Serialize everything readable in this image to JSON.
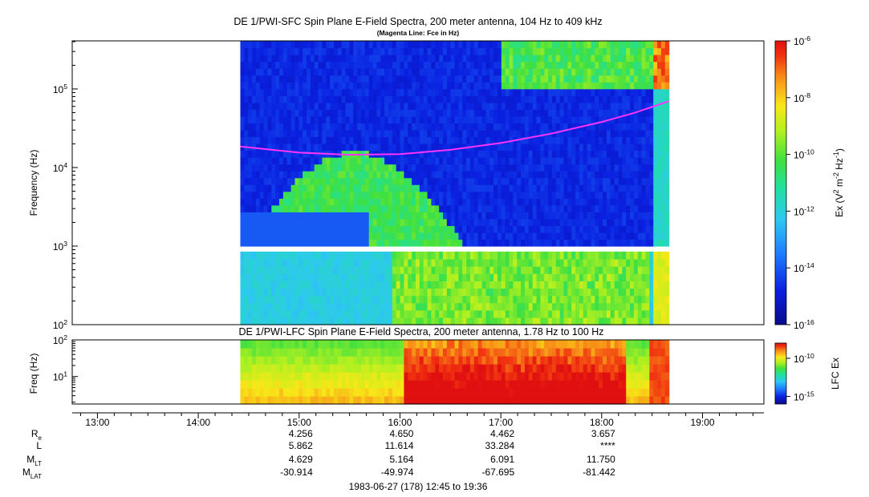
{
  "chart_data": [
    {
      "panel": "SFC",
      "type": "heatmap",
      "title": "DE 1/PWI-SFC  Spin Plane E-Field Spectra, 200 meter antenna, 104 Hz to 409 kHz",
      "subtitle": "(Magenta Line: Fce in Hz)",
      "ylabel": "Frequency (Hz)",
      "yscale": "log",
      "ylim": [
        100,
        409000
      ],
      "ytick_labels": [
        {
          "base": "10",
          "exp": "2",
          "value": 100
        },
        {
          "base": "10",
          "exp": "3",
          "value": 1000
        },
        {
          "base": "10",
          "exp": "4",
          "value": 10000
        },
        {
          "base": "10",
          "exp": "5",
          "value": 100000
        }
      ],
      "x_data_range": [
        "14:25",
        "18:40"
      ],
      "band_gap_hz": 1000,
      "fce_line": {
        "color": "#ff33ff",
        "points": [
          [
            "14:25",
            18500
          ],
          [
            "15:00",
            15500
          ],
          [
            "15:30",
            14500
          ],
          [
            "16:00",
            14800
          ],
          [
            "16:30",
            16800
          ],
          [
            "17:00",
            20500
          ],
          [
            "17:30",
            27000
          ],
          [
            "18:00",
            38000
          ],
          [
            "18:20",
            50000
          ],
          [
            "18:40",
            70000
          ]
        ]
      },
      "colorbar": {
        "label_parts": [
          "Ex (V",
          "2",
          " m",
          "-2",
          " Hz",
          "-1",
          ")"
        ],
        "scale": "log",
        "range": [
          1e-16,
          1e-06
        ],
        "tick_labels": [
          {
            "base": "10",
            "exp": "-6",
            "value": 1e-06
          },
          {
            "base": "10",
            "exp": "-8",
            "value": 1e-08
          },
          {
            "base": "10",
            "exp": "-10",
            "value": 1e-10
          },
          {
            "base": "10",
            "exp": "-12",
            "value": 1e-12
          },
          {
            "base": "10",
            "exp": "-14",
            "value": 1e-14
          },
          {
            "base": "10",
            "exp": "-16",
            "value": 1e-16
          }
        ]
      }
    },
    {
      "panel": "LFC",
      "type": "heatmap",
      "title": "DE 1/PWI-LFC  Spin Plane E-Field Spectra, 200 meter antenna, 1.78 Hz to 100 Hz",
      "ylabel": "Freq (Hz)",
      "yscale": "log",
      "ylim": [
        1.78,
        100
      ],
      "ytick_labels": [
        {
          "base": "10",
          "exp": "1",
          "value": 10
        },
        {
          "base": "10",
          "exp": "2",
          "value": 100
        }
      ],
      "x_data_range": [
        "14:25",
        "18:40"
      ],
      "colorbar": {
        "label": "LFC Ex",
        "scale": "log",
        "range": [
          1e-16,
          1e-08
        ],
        "tick_labels": [
          {
            "base": "10",
            "exp": "-10",
            "value": 1e-10
          },
          {
            "base": "10",
            "exp": "-15",
            "value": 1e-15
          }
        ]
      }
    }
  ],
  "x_axis": {
    "range": [
      "12:45",
      "19:36"
    ],
    "ticks": [
      "13:00",
      "14:00",
      "15:00",
      "16:00",
      "17:00",
      "18:00",
      "19:00"
    ]
  },
  "ephemeris": {
    "rows": [
      {
        "label": "R",
        "sub": "e",
        "values": [
          "4.256",
          "4.650",
          "4.462",
          "3.657"
        ]
      },
      {
        "label": "L",
        "sub": "",
        "values": [
          "5.862",
          "11.614",
          "33.284",
          "****"
        ]
      },
      {
        "label": "M",
        "sub": "LT",
        "values": [
          "4.629",
          "5.164",
          "6.091",
          "11.750"
        ]
      },
      {
        "label": "M",
        "sub": "LAT",
        "values": [
          "-30.914",
          "-49.974",
          "-67.695",
          "-81.442"
        ]
      }
    ],
    "times": [
      "15:00",
      "16:00",
      "17:00",
      "18:00"
    ]
  },
  "footer": "1983-06-27 (178) 12:45 to 19:36"
}
